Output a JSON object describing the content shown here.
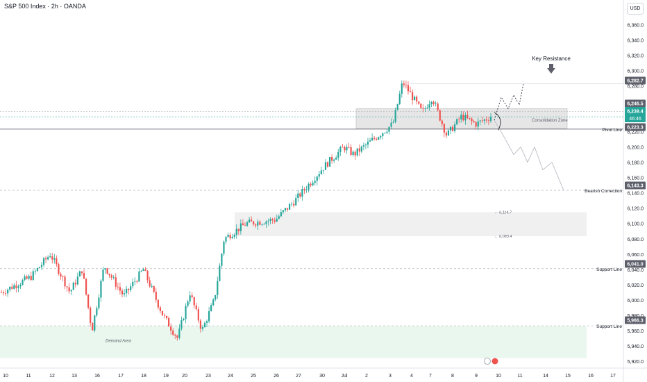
{
  "header": {
    "title": "S&P 500 Index · 2h · OANDA",
    "currency": "USD"
  },
  "colors": {
    "up": "#26a69a",
    "down": "#ef5350",
    "annotation_dark": "#5d606b",
    "zone_fill": "#e8e8e8",
    "demand_fill": "#e9f7ee"
  },
  "chart_data": {
    "type": "candlestick",
    "title": "S&P 500 Index · 2h · OANDA",
    "ylabel": "USD",
    "ylim": [
      5911,
      6392
    ],
    "y_ticks": [
      5920,
      5940,
      5960,
      5980,
      6000,
      6020,
      6040,
      6060,
      6080,
      6100,
      6120,
      6140,
      6160,
      6180,
      6200,
      6220,
      6240,
      6260,
      6280,
      6300,
      6320,
      6340,
      6360
    ],
    "x_ticks": [
      "10",
      "11",
      "12",
      "13",
      "16",
      "17",
      "18",
      "19",
      "20",
      "23",
      "24",
      "25",
      "26",
      "27",
      "30",
      "Jul",
      "2",
      "3",
      "4",
      "7",
      "8",
      "9",
      "10",
      "11",
      "14",
      "15",
      "16",
      "17"
    ],
    "price_tags": [
      {
        "value": "6,282.7",
        "style": "dark"
      },
      {
        "value": "6,246.5",
        "style": "dark"
      },
      {
        "value": "6,239.4",
        "sub": "46:46",
        "style": "green"
      },
      {
        "value": "6,223.3",
        "style": "dark"
      },
      {
        "value": "6,143.3",
        "style": "dark"
      },
      {
        "value": "6,041.0",
        "style": "dark"
      },
      {
        "value": "5,966.3",
        "style": "dark"
      }
    ],
    "horizontal_levels": [
      {
        "label": "Pivot Line",
        "value": 6223.3
      },
      {
        "label": "Bearish Correction",
        "value": 6143.3
      },
      {
        "label": "Support Line",
        "value": 6041.0
      },
      {
        "label": "Support Line",
        "value": 5966.3
      }
    ],
    "zones": [
      {
        "label": "Consolidation Zone",
        "top": 6250,
        "bottom": 6224
      },
      {
        "label": "Demand Area",
        "top": 5966,
        "bottom": 5924
      },
      {
        "label": "",
        "top": 6114.7,
        "bottom": 6083.4
      }
    ],
    "zone_labels": [
      "6,114.7",
      "6,083.4"
    ],
    "key_resistance": {
      "label": "Key Resistance",
      "value": 6282.7
    },
    "series": [
      {
        "anchors": [
          {
            "t": 0,
            "y": 6010
          },
          {
            "t": 0.06,
            "y": 6030
          },
          {
            "t": 0.1,
            "y": 6060
          },
          {
            "t": 0.14,
            "y": 6010
          },
          {
            "t": 0.165,
            "y": 6040
          },
          {
            "t": 0.185,
            "y": 5960
          },
          {
            "t": 0.21,
            "y": 6045
          },
          {
            "t": 0.25,
            "y": 6005
          },
          {
            "t": 0.29,
            "y": 6040
          },
          {
            "t": 0.33,
            "y": 5980
          },
          {
            "t": 0.36,
            "y": 5950
          },
          {
            "t": 0.385,
            "y": 6010
          },
          {
            "t": 0.41,
            "y": 5960
          },
          {
            "t": 0.435,
            "y": 6000
          },
          {
            "t": 0.455,
            "y": 6080
          },
          {
            "t": 0.5,
            "y": 6100
          },
          {
            "t": 0.56,
            "y": 6105
          },
          {
            "t": 0.6,
            "y": 6130
          },
          {
            "t": 0.66,
            "y": 6175
          },
          {
            "t": 0.7,
            "y": 6200
          },
          {
            "t": 0.72,
            "y": 6190
          },
          {
            "t": 0.76,
            "y": 6210
          },
          {
            "t": 0.8,
            "y": 6230
          },
          {
            "t": 0.82,
            "y": 6285
          },
          {
            "t": 0.86,
            "y": 6245
          },
          {
            "t": 0.88,
            "y": 6265
          },
          {
            "t": 0.91,
            "y": 6215
          },
          {
            "t": 0.94,
            "y": 6240
          },
          {
            "t": 0.97,
            "y": 6230
          },
          {
            "t": 1,
            "y": 6239.4
          }
        ]
      }
    ],
    "forecast_up": [
      6235,
      6265,
      6250,
      6268,
      6255,
      6282.7
    ],
    "forecast_down": [
      6235,
      6215,
      6190,
      6200,
      6180,
      6200,
      6170,
      6180,
      6143.3
    ]
  }
}
